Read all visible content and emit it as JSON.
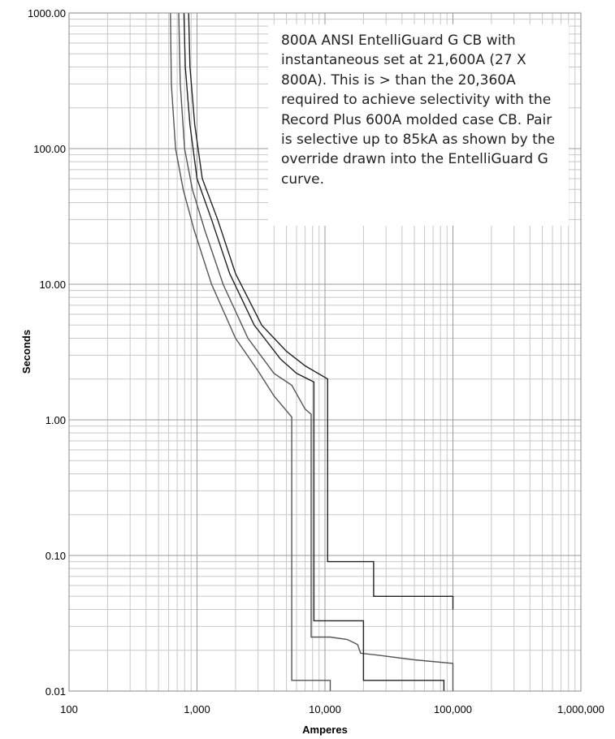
{
  "chart_data": {
    "type": "line",
    "x_scale": "log",
    "y_scale": "log",
    "xlim": [
      100,
      1000000
    ],
    "ylim": [
      0.01,
      1000
    ],
    "xlabel": "Amperes",
    "ylabel": "Seconds",
    "x_ticks": [
      "100",
      "1,000",
      "10,000",
      "100,000",
      "1,000,000"
    ],
    "y_ticks": [
      "0.01",
      "0.10",
      "1.00",
      "10.00",
      "100.00",
      "1000.00"
    ],
    "grid": true,
    "annotation": "800A ANSI EntelliGuard G CB with instantaneous set at 21,600A (27 X 800A). This is > than the 20,360A required to achieve selectivity with the Record Plus 600A molded case CB. Pair is selective up to 85kA as shown by the override drawn into the EntelliGuard G curve.",
    "series": [
      {
        "color": "#555555",
        "points": [
          [
            620,
            1000
          ],
          [
            630,
            300
          ],
          [
            680,
            100
          ],
          [
            780,
            50
          ],
          [
            950,
            25
          ],
          [
            1300,
            10
          ],
          [
            2000,
            4
          ],
          [
            3000,
            2.3
          ],
          [
            4000,
            1.5
          ],
          [
            5500,
            1.05
          ],
          [
            5500,
            0.012
          ],
          [
            11000,
            0.012
          ],
          [
            11000,
            0.01
          ]
        ]
      },
      {
        "color": "#555555",
        "points": [
          [
            720,
            1000
          ],
          [
            740,
            300
          ],
          [
            800,
            100
          ],
          [
            920,
            50
          ],
          [
            1150,
            25
          ],
          [
            1600,
            10
          ],
          [
            2500,
            4
          ],
          [
            4000,
            2.2
          ],
          [
            5500,
            1.8
          ],
          [
            7000,
            1.2
          ],
          [
            7800,
            1.1
          ],
          [
            7800,
            0.025
          ],
          [
            11000,
            0.025
          ],
          [
            15000,
            0.024
          ],
          [
            18000,
            0.022
          ],
          [
            19000,
            0.019
          ],
          [
            25000,
            0.0185
          ],
          [
            50000,
            0.017
          ],
          [
            100000,
            0.016
          ],
          [
            100000,
            0.01
          ]
        ]
      },
      {
        "color": "#222222",
        "points": [
          [
            790,
            1000
          ],
          [
            810,
            400
          ],
          [
            880,
            150
          ],
          [
            1000,
            60
          ],
          [
            1300,
            30
          ],
          [
            1800,
            12
          ],
          [
            2800,
            5
          ],
          [
            4500,
            2.8
          ],
          [
            6000,
            2.2
          ],
          [
            8200,
            1.9
          ],
          [
            8200,
            0.033
          ],
          [
            20000,
            0.033
          ],
          [
            20000,
            0.012
          ],
          [
            85000,
            0.012
          ],
          [
            85000,
            0.01
          ]
        ]
      },
      {
        "color": "#222222",
        "points": [
          [
            860,
            1000
          ],
          [
            880,
            400
          ],
          [
            960,
            150
          ],
          [
            1100,
            60
          ],
          [
            1450,
            30
          ],
          [
            2000,
            12
          ],
          [
            3200,
            5
          ],
          [
            5000,
            3.2
          ],
          [
            7000,
            2.5
          ],
          [
            10500,
            2
          ],
          [
            10500,
            0.09
          ],
          [
            24000,
            0.09
          ],
          [
            24000,
            0.05
          ],
          [
            100000,
            0.05
          ],
          [
            100000,
            0.04
          ]
        ]
      }
    ]
  }
}
